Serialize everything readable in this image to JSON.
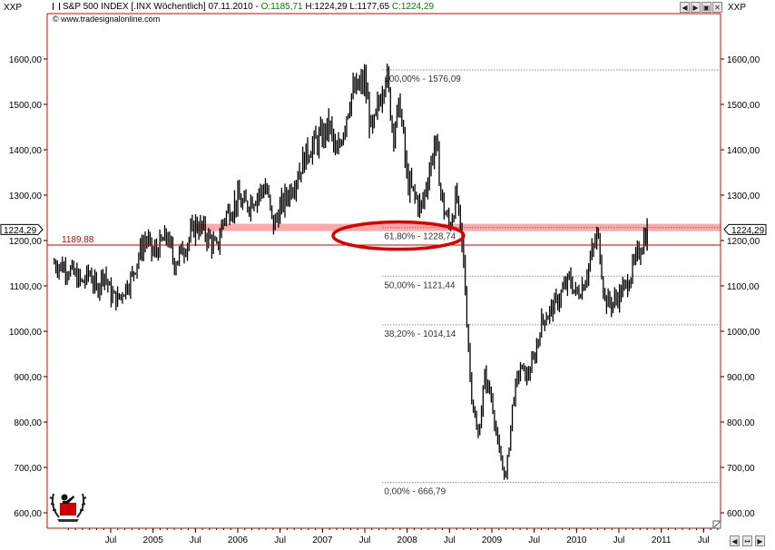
{
  "header": {
    "symbol_left": "XXP",
    "symbol_right": "XXP",
    "name": "S&P 500 INDEX [.INX  Wöchentlich] 07.11.2010 - ",
    "open": "O:1185,71",
    "high": " H:1224,29",
    "low": " L:1177,65",
    "close": " C:1224,29",
    "source": "© www.tradesignalonline.com",
    "window_buttons": [
      "◀",
      "▶",
      "▣",
      "✕"
    ],
    "colors": {
      "open": "#008000",
      "close": "#008000",
      "text": "#000000",
      "frame": "#e00000"
    }
  },
  "footer": {
    "scroll_buttons": [
      "◀",
      "↔",
      "▶"
    ]
  },
  "chart_data": {
    "type": "candlestick-line",
    "title": "S&P 500 INDEX [.INX  Wöchentlich] 07.11.2010",
    "period": "weekly",
    "x_range": [
      "2003-11",
      "2011-11"
    ],
    "ylim": [
      565,
      1660
    ],
    "y_ticks": [
      "600,00",
      "700,00",
      "800,00",
      "900,00",
      "1000,00",
      "1100,00",
      "1200,00",
      "1300,00",
      "1400,00",
      "1500,00",
      "1600,00"
    ],
    "y_tick_values": [
      600,
      700,
      800,
      900,
      1000,
      1100,
      1200,
      1300,
      1400,
      1500,
      1600
    ],
    "x_ticks": [
      {
        "date": "2004-07",
        "label": "Jul"
      },
      {
        "date": "2005-01",
        "label": "2005"
      },
      {
        "date": "2005-07",
        "label": "Jul"
      },
      {
        "date": "2006-01",
        "label": "2006"
      },
      {
        "date": "2006-07",
        "label": "Jul"
      },
      {
        "date": "2007-01",
        "label": "2007"
      },
      {
        "date": "2007-07",
        "label": "Jul"
      },
      {
        "date": "2008-01",
        "label": "2008"
      },
      {
        "date": "2008-07",
        "label": "Jul"
      },
      {
        "date": "2009-01",
        "label": "2009"
      },
      {
        "date": "2009-07",
        "label": "Jul"
      },
      {
        "date": "2010-01",
        "label": "2010"
      },
      {
        "date": "2010-07",
        "label": "Jul"
      },
      {
        "date": "2011-01",
        "label": "2011"
      },
      {
        "date": "2011-07",
        "label": "Jul"
      }
    ],
    "series": [
      {
        "points": [
          [
            "2003-11",
            1150
          ],
          [
            "2004-01",
            1138
          ],
          [
            "2004-03",
            1105
          ],
          [
            "2004-04",
            1130
          ],
          [
            "2004-05",
            1090
          ],
          [
            "2004-06",
            1135
          ],
          [
            "2004-07",
            1080
          ],
          [
            "2004-08",
            1070
          ],
          [
            "2004-10",
            1120
          ],
          [
            "2004-11",
            1170
          ],
          [
            "2004-12",
            1205
          ],
          [
            "2005-01",
            1170
          ],
          [
            "2005-03",
            1210
          ],
          [
            "2005-04",
            1150
          ],
          [
            "2005-06",
            1200
          ],
          [
            "2005-07",
            1235
          ],
          [
            "2005-08",
            1225
          ],
          [
            "2005-10",
            1180
          ],
          [
            "2005-11",
            1250
          ],
          [
            "2006-01",
            1290
          ],
          [
            "2006-02",
            1275
          ],
          [
            "2006-05",
            1320
          ],
          [
            "2006-06",
            1230
          ],
          [
            "2006-07",
            1270
          ],
          [
            "2006-09",
            1330
          ],
          [
            "2006-11",
            1400
          ],
          [
            "2007-01",
            1430
          ],
          [
            "2007-02",
            1455
          ],
          [
            "2007-03",
            1380
          ],
          [
            "2007-05",
            1520
          ],
          [
            "2007-07",
            1550
          ],
          [
            "2007-08",
            1430
          ],
          [
            "2007-10",
            1576
          ],
          [
            "2007-11",
            1440
          ],
          [
            "2007-12",
            1500
          ],
          [
            "2008-01",
            1330
          ],
          [
            "2008-03",
            1270
          ],
          [
            "2008-05",
            1420
          ],
          [
            "2008-06",
            1280
          ],
          [
            "2008-07",
            1230
          ],
          [
            "2008-08",
            1300
          ],
          [
            "2008-09",
            1150
          ],
          [
            "2008-10",
            880
          ],
          [
            "2008-11",
            760
          ],
          [
            "2008-12",
            900
          ],
          [
            "2009-01",
            850
          ],
          [
            "2009-02",
            730
          ],
          [
            "2009-03",
            677
          ],
          [
            "2009-04",
            850
          ],
          [
            "2009-05",
            920
          ],
          [
            "2009-06",
            900
          ],
          [
            "2009-07",
            940
          ],
          [
            "2009-08",
            1020
          ],
          [
            "2009-10",
            1060
          ],
          [
            "2009-12",
            1115
          ],
          [
            "2010-01",
            1080
          ],
          [
            "2010-02",
            1105
          ],
          [
            "2010-04",
            1217
          ],
          [
            "2010-05",
            1070
          ],
          [
            "2010-06",
            1060
          ],
          [
            "2010-07",
            1080
          ],
          [
            "2010-08",
            1100
          ],
          [
            "2010-09",
            1140
          ],
          [
            "2010-10",
            1183
          ],
          [
            "2010-11",
            1224.29
          ]
        ]
      }
    ],
    "horizontal_lines": [
      {
        "value": 1189.88,
        "label": "1189,88",
        "color": "#cc0000"
      }
    ],
    "current_value": {
      "value": 1224.29,
      "label": "1224,29"
    },
    "highlight_band": {
      "value": 1228.74,
      "from": "2005-07",
      "color": "#ff9999"
    },
    "fibonacci": {
      "from_date": "2007-10",
      "levels": [
        {
          "value": 1576.09,
          "label": "100,00% - 1576,09"
        },
        {
          "value": 1228.74,
          "label": "61,80% - 1228,74"
        },
        {
          "value": 1121.44,
          "label": "50,00% - 1121,44"
        },
        {
          "value": 1014.14,
          "label": "38,20% - 1014,14"
        },
        {
          "value": 666.79,
          "label": "0,00% - 666,79"
        }
      ]
    },
    "annotation": {
      "type": "ellipse",
      "target_level": "61,80% - 1228,74",
      "color": "#dd0000"
    }
  }
}
